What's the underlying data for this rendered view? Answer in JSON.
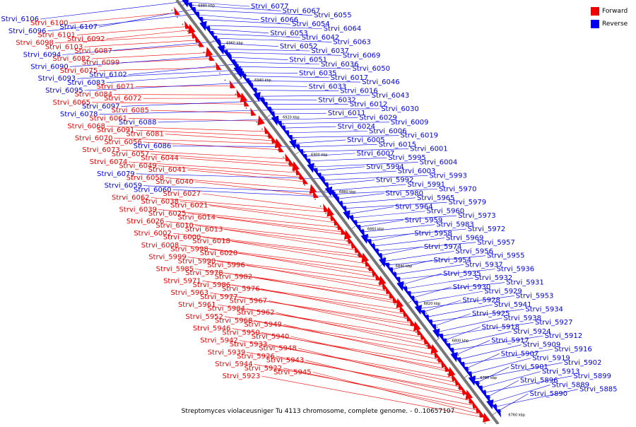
{
  "caption": "Streptomyces violaceusniger Tu 4113 chromosome, complete genome. - 0..10657107",
  "colors": {
    "forward": "#ee0000",
    "reverse": "#0000ee",
    "axis": "#777777"
  },
  "legend": [
    {
      "key": "forward",
      "label": "Forward",
      "color": "#ee0000"
    },
    {
      "key": "reverse",
      "label": "Reverse",
      "color": "#0000ee"
    }
  ],
  "axis_ticks": [
    {
      "kbp": 6980,
      "label": "6980 kbp"
    },
    {
      "kbp": 6960,
      "label": "6960 kbp"
    },
    {
      "kbp": 6940,
      "label": "6940 kbp"
    },
    {
      "kbp": 6920,
      "label": "6920 kbp"
    },
    {
      "kbp": 6900,
      "label": "6900 kbp"
    },
    {
      "kbp": 6880,
      "label": "6880 kbp"
    },
    {
      "kbp": 6860,
      "label": "6860 kbp"
    },
    {
      "kbp": 6840,
      "label": "6840 kbp"
    },
    {
      "kbp": 6820,
      "label": "6820 kbp"
    },
    {
      "kbp": 6800,
      "label": "6800 kbp"
    },
    {
      "kbp": 6780,
      "label": "6780 kbp"
    },
    {
      "kbp": 6760,
      "label": "6760 kbp"
    }
  ],
  "genes_left": [
    {
      "name": "Strvi_6106",
      "strand": "reverse"
    },
    {
      "name": "Strvi_6100",
      "strand": "forward"
    },
    {
      "name": "Strvi_6107",
      "strand": "reverse"
    },
    {
      "name": "Strvi_6096",
      "strand": "reverse"
    },
    {
      "name": "Strvi_6101",
      "strand": "forward"
    },
    {
      "name": "Strvi_6092",
      "strand": "forward"
    },
    {
      "name": "Strvi_6098",
      "strand": "forward"
    },
    {
      "name": "Strvi_6103",
      "strand": "forward"
    },
    {
      "name": "Strvi_6087",
      "strand": "forward"
    },
    {
      "name": "Strvi_6094",
      "strand": "reverse"
    },
    {
      "name": "Strvi_6082",
      "strand": "forward"
    },
    {
      "name": "Strvi_6099",
      "strand": "forward"
    },
    {
      "name": "Strvi_6090",
      "strand": "reverse"
    },
    {
      "name": "Strvi_6075",
      "strand": "forward"
    },
    {
      "name": "Strvi_6102",
      "strand": "reverse"
    },
    {
      "name": "Strvi_6093",
      "strand": "reverse"
    },
    {
      "name": "Strvi_6083",
      "strand": "reverse"
    },
    {
      "name": "Strvi_6071",
      "strand": "forward"
    },
    {
      "name": "Strvi_6095",
      "strand": "reverse"
    },
    {
      "name": "Strvi_6084",
      "strand": "forward"
    },
    {
      "name": "Strvi_6072",
      "strand": "forward"
    },
    {
      "name": "Strvi_6065",
      "strand": "forward"
    },
    {
      "name": "Strvi_6097",
      "strand": "reverse"
    },
    {
      "name": "Strvi_6085",
      "strand": "forward"
    },
    {
      "name": "Strvi_6078",
      "strand": "reverse"
    },
    {
      "name": "Strvi_6061",
      "strand": "forward"
    },
    {
      "name": "Strvi_6088",
      "strand": "reverse"
    },
    {
      "name": "Strvi_6068",
      "strand": "forward"
    },
    {
      "name": "Strvi_6091",
      "strand": "forward"
    },
    {
      "name": "Strvi_6081",
      "strand": "forward"
    },
    {
      "name": "Strvi_6070",
      "strand": "forward"
    },
    {
      "name": "Strvi_6056",
      "strand": "forward"
    },
    {
      "name": "Strvi_6086",
      "strand": "reverse"
    },
    {
      "name": "Strvi_6073",
      "strand": "forward"
    },
    {
      "name": "Strvi_6057",
      "strand": "forward"
    },
    {
      "name": "Strvi_6044",
      "strand": "forward"
    },
    {
      "name": "Strvi_6074",
      "strand": "forward"
    },
    {
      "name": "Strvi_6049",
      "strand": "forward"
    },
    {
      "name": "Strvi_6041",
      "strand": "forward"
    },
    {
      "name": "Strvi_6079",
      "strand": "reverse"
    },
    {
      "name": "Strvi_6058",
      "strand": "forward"
    },
    {
      "name": "Strvi_6040",
      "strand": "forward"
    },
    {
      "name": "Strvi_6059",
      "strand": "reverse"
    },
    {
      "name": "Strvi_6060",
      "strand": "reverse"
    },
    {
      "name": "Strvi_6027",
      "strand": "forward"
    },
    {
      "name": "Strvi_6062",
      "strand": "forward"
    },
    {
      "name": "Strvi_6038",
      "strand": "forward"
    },
    {
      "name": "Strvi_6021",
      "strand": "forward"
    },
    {
      "name": "Strvi_6039",
      "strand": "forward"
    },
    {
      "name": "Strvi_6025",
      "strand": "forward"
    },
    {
      "name": "Strvi_6014",
      "strand": "forward"
    },
    {
      "name": "Strvi_6026",
      "strand": "forward"
    },
    {
      "name": "Strvi_6010",
      "strand": "forward"
    },
    {
      "name": "Strvi_6013",
      "strand": "forward"
    },
    {
      "name": "Strvi_6002",
      "strand": "forward"
    },
    {
      "name": "Strvi_6000",
      "strand": "forward"
    },
    {
      "name": "Strvi_6018",
      "strand": "forward"
    },
    {
      "name": "Strvi_6008",
      "strand": "forward"
    },
    {
      "name": "Strvi_5998",
      "strand": "forward"
    },
    {
      "name": "Strvi_6020",
      "strand": "forward"
    },
    {
      "name": "Strvi_5999",
      "strand": "forward"
    },
    {
      "name": "Strvi_5990",
      "strand": "forward"
    },
    {
      "name": "Strvi_5996",
      "strand": "forward"
    },
    {
      "name": "Strvi_5985",
      "strand": "forward"
    },
    {
      "name": "Strvi_5978",
      "strand": "forward"
    },
    {
      "name": "Strvi_5982",
      "strand": "forward"
    },
    {
      "name": "Strvi_5971",
      "strand": "forward"
    },
    {
      "name": "Strvi_5986",
      "strand": "forward"
    },
    {
      "name": "Strvi_5976",
      "strand": "forward"
    },
    {
      "name": "Strvi_5963",
      "strand": "forward"
    },
    {
      "name": "Strvi_5977",
      "strand": "forward"
    },
    {
      "name": "Strvi_5967",
      "strand": "forward"
    },
    {
      "name": "Strvi_5961",
      "strand": "forward"
    },
    {
      "name": "Strvi_5984",
      "strand": "forward"
    },
    {
      "name": "Strvi_5962",
      "strand": "forward"
    },
    {
      "name": "Strvi_5952",
      "strand": "forward"
    },
    {
      "name": "Strvi_5968",
      "strand": "forward"
    },
    {
      "name": "Strvi_5949",
      "strand": "forward"
    },
    {
      "name": "Strvi_5946",
      "strand": "forward"
    },
    {
      "name": "Strvi_5950",
      "strand": "forward"
    },
    {
      "name": "Strvi_5940",
      "strand": "forward"
    },
    {
      "name": "Strvi_5942",
      "strand": "forward"
    },
    {
      "name": "Strvi_5933",
      "strand": "forward"
    },
    {
      "name": "Strvi_5948",
      "strand": "forward"
    },
    {
      "name": "Strvi_5939",
      "strand": "forward"
    },
    {
      "name": "Strvi_5926",
      "strand": "forward"
    },
    {
      "name": "Strvi_5943",
      "strand": "forward"
    },
    {
      "name": "Strvi_5944",
      "strand": "forward"
    },
    {
      "name": "Strvi_5922",
      "strand": "forward"
    },
    {
      "name": "Strvi_5945",
      "strand": "forward"
    },
    {
      "name": "Strvi_5923",
      "strand": "forward"
    }
  ],
  "genes_right": [
    {
      "name": "Strvi_6077",
      "strand": "reverse"
    },
    {
      "name": "Strvi_6067",
      "strand": "reverse"
    },
    {
      "name": "Strvi_6055",
      "strand": "reverse"
    },
    {
      "name": "Strvi_6066",
      "strand": "reverse"
    },
    {
      "name": "Strvi_6054",
      "strand": "reverse"
    },
    {
      "name": "Strvi_6064",
      "strand": "reverse"
    },
    {
      "name": "Strvi_6053",
      "strand": "reverse"
    },
    {
      "name": "Strvi_6042",
      "strand": "reverse"
    },
    {
      "name": "Strvi_6063",
      "strand": "reverse"
    },
    {
      "name": "Strvi_6052",
      "strand": "reverse"
    },
    {
      "name": "Strvi_6037",
      "strand": "reverse"
    },
    {
      "name": "Strvi_6069",
      "strand": "reverse"
    },
    {
      "name": "Strvi_6051",
      "strand": "reverse"
    },
    {
      "name": "Strvi_6036",
      "strand": "reverse"
    },
    {
      "name": "Strvi_6050",
      "strand": "reverse"
    },
    {
      "name": "Strvi_6035",
      "strand": "reverse"
    },
    {
      "name": "Strvi_6017",
      "strand": "reverse"
    },
    {
      "name": "Strvi_6046",
      "strand": "reverse"
    },
    {
      "name": "Strvi_6033",
      "strand": "reverse"
    },
    {
      "name": "Strvi_6016",
      "strand": "reverse"
    },
    {
      "name": "Strvi_6043",
      "strand": "reverse"
    },
    {
      "name": "Strvi_6032",
      "strand": "reverse"
    },
    {
      "name": "Strvi_6012",
      "strand": "reverse"
    },
    {
      "name": "Strvi_6030",
      "strand": "reverse"
    },
    {
      "name": "Strvi_6011",
      "strand": "reverse"
    },
    {
      "name": "Strvi_6029",
      "strand": "reverse"
    },
    {
      "name": "Strvi_6009",
      "strand": "reverse"
    },
    {
      "name": "Strvi_6024",
      "strand": "reverse"
    },
    {
      "name": "Strvi_6006",
      "strand": "reverse"
    },
    {
      "name": "Strvi_6019",
      "strand": "reverse"
    },
    {
      "name": "Strvi_6005",
      "strand": "reverse"
    },
    {
      "name": "Strvi_6015",
      "strand": "reverse"
    },
    {
      "name": "Strvi_6001",
      "strand": "reverse"
    },
    {
      "name": "Strvi_6007",
      "strand": "reverse"
    },
    {
      "name": "Strvi_5995",
      "strand": "reverse"
    },
    {
      "name": "Strvi_6004",
      "strand": "reverse"
    },
    {
      "name": "Strvi_5994",
      "strand": "reverse"
    },
    {
      "name": "Strvi_6003",
      "strand": "reverse"
    },
    {
      "name": "Strvi_5993",
      "strand": "reverse"
    },
    {
      "name": "Strvi_5992",
      "strand": "reverse"
    },
    {
      "name": "Strvi_5991",
      "strand": "reverse"
    },
    {
      "name": "Strvi_5970",
      "strand": "reverse"
    },
    {
      "name": "Strvi_5980",
      "strand": "reverse"
    },
    {
      "name": "Strvi_5965",
      "strand": "reverse"
    },
    {
      "name": "Strvi_5979",
      "strand": "reverse"
    },
    {
      "name": "Strvi_5964",
      "strand": "reverse"
    },
    {
      "name": "Strvi_5960",
      "strand": "reverse"
    },
    {
      "name": "Strvi_5973",
      "strand": "reverse"
    },
    {
      "name": "Strvi_5959",
      "strand": "reverse"
    },
    {
      "name": "Strvi_5983",
      "strand": "reverse"
    },
    {
      "name": "Strvi_5972",
      "strand": "reverse"
    },
    {
      "name": "Strvi_5958",
      "strand": "reverse"
    },
    {
      "name": "Strvi_5969",
      "strand": "reverse"
    },
    {
      "name": "Strvi_5957",
      "strand": "reverse"
    },
    {
      "name": "Strvi_5974",
      "strand": "reverse"
    },
    {
      "name": "Strvi_5956",
      "strand": "reverse"
    },
    {
      "name": "Strvi_5955",
      "strand": "reverse"
    },
    {
      "name": "Strvi_5954",
      "strand": "reverse"
    },
    {
      "name": "Strvi_5937",
      "strand": "reverse"
    },
    {
      "name": "Strvi_5936",
      "strand": "reverse"
    },
    {
      "name": "Strvi_5935",
      "strand": "reverse"
    },
    {
      "name": "Strvi_5932",
      "strand": "reverse"
    },
    {
      "name": "Strvi_5931",
      "strand": "reverse"
    },
    {
      "name": "Strvi_5930",
      "strand": "reverse"
    },
    {
      "name": "Strvi_5929",
      "strand": "reverse"
    },
    {
      "name": "Strvi_5953",
      "strand": "reverse"
    },
    {
      "name": "Strvi_5928",
      "strand": "reverse"
    },
    {
      "name": "Strvi_5941",
      "strand": "reverse"
    },
    {
      "name": "Strvi_5934",
      "strand": "reverse"
    },
    {
      "name": "Strvi_5925",
      "strand": "reverse"
    },
    {
      "name": "Strvi_5938",
      "strand": "reverse"
    },
    {
      "name": "Strvi_5927",
      "strand": "reverse"
    },
    {
      "name": "Strvi_5918",
      "strand": "reverse"
    },
    {
      "name": "Strvi_5924",
      "strand": "reverse"
    },
    {
      "name": "Strvi_5912",
      "strand": "reverse"
    },
    {
      "name": "Strvi_5917",
      "strand": "reverse"
    },
    {
      "name": "Strvi_5909",
      "strand": "reverse"
    },
    {
      "name": "Strvi_5916",
      "strand": "reverse"
    },
    {
      "name": "Strvi_5907",
      "strand": "reverse"
    },
    {
      "name": "Strvi_5919",
      "strand": "reverse"
    },
    {
      "name": "Strvi_5902",
      "strand": "reverse"
    },
    {
      "name": "Strvi_5901",
      "strand": "reverse"
    },
    {
      "name": "Strvi_5913",
      "strand": "reverse"
    },
    {
      "name": "Strvi_5899",
      "strand": "reverse"
    },
    {
      "name": "Strvi_5896",
      "strand": "reverse"
    },
    {
      "name": "Strvi_5889",
      "strand": "reverse"
    },
    {
      "name": "Strvi_5885",
      "strand": "reverse"
    },
    {
      "name": "Strvi_5890",
      "strand": "reverse"
    }
  ]
}
